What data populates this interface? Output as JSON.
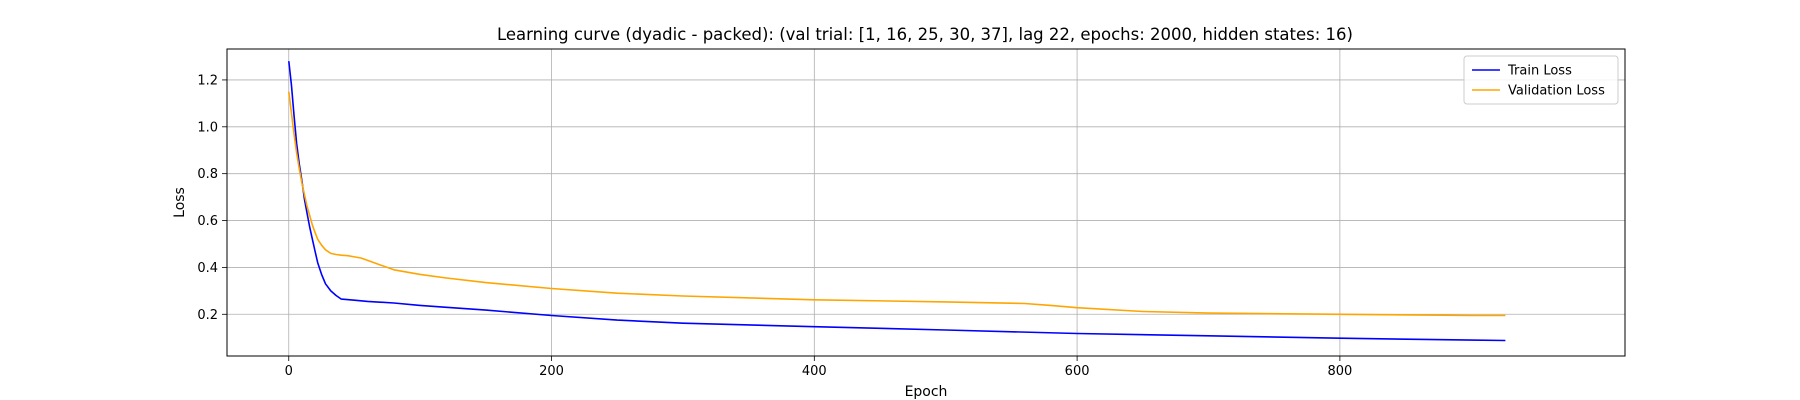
{
  "chart_data": {
    "type": "line",
    "title": "Learning curve (dyadic - packed): (val trial: [1, 16, 25, 30, 37], lag 22, epochs: 2000, hidden states: 16)",
    "xlabel": "Epoch",
    "ylabel": "Loss",
    "xlim": [
      -47,
      1017
    ],
    "ylim": [
      0.022,
      1.332
    ],
    "xticks": [
      0,
      200,
      400,
      600,
      800
    ],
    "yticks": [
      0.2,
      0.4,
      0.6,
      0.8,
      1.0,
      1.2
    ],
    "xtick_labels": [
      "0",
      "200",
      "400",
      "600",
      "800"
    ],
    "ytick_labels": [
      "0.2",
      "0.4",
      "0.6",
      "0.8",
      "1.0",
      "1.2"
    ],
    "grid": true,
    "legend_position": "top-right",
    "series": [
      {
        "name": "Train Loss",
        "color": "#0000ff",
        "x": [
          0,
          2,
          4,
          6,
          8,
          10,
          12,
          14,
          16,
          18,
          20,
          22,
          25,
          28,
          32,
          36,
          40,
          50,
          60,
          80,
          100,
          120,
          150,
          200,
          250,
          300,
          400,
          500,
          600,
          700,
          800,
          900,
          926
        ],
        "y": [
          1.28,
          1.18,
          1.05,
          0.93,
          0.84,
          0.77,
          0.69,
          0.63,
          0.57,
          0.52,
          0.47,
          0.42,
          0.37,
          0.33,
          0.3,
          0.28,
          0.265,
          0.26,
          0.255,
          0.248,
          0.238,
          0.23,
          0.218,
          0.195,
          0.175,
          0.162,
          0.147,
          0.133,
          0.118,
          0.108,
          0.098,
          0.09,
          0.088
        ]
      },
      {
        "name": "Validation Loss",
        "color": "#ffa500",
        "x": [
          0,
          2,
          4,
          6,
          8,
          10,
          12,
          14,
          16,
          18,
          20,
          22,
          25,
          28,
          32,
          36,
          40,
          45,
          50,
          55,
          60,
          70,
          80,
          100,
          120,
          150,
          200,
          250,
          300,
          400,
          500,
          560,
          580,
          600,
          650,
          700,
          800,
          900,
          926
        ],
        "y": [
          1.15,
          1.06,
          0.97,
          0.89,
          0.82,
          0.76,
          0.71,
          0.66,
          0.62,
          0.58,
          0.55,
          0.52,
          0.495,
          0.475,
          0.46,
          0.455,
          0.452,
          0.45,
          0.445,
          0.44,
          0.43,
          0.41,
          0.39,
          0.37,
          0.355,
          0.335,
          0.31,
          0.29,
          0.278,
          0.262,
          0.253,
          0.246,
          0.238,
          0.228,
          0.212,
          0.205,
          0.2,
          0.195,
          0.195
        ]
      }
    ]
  }
}
